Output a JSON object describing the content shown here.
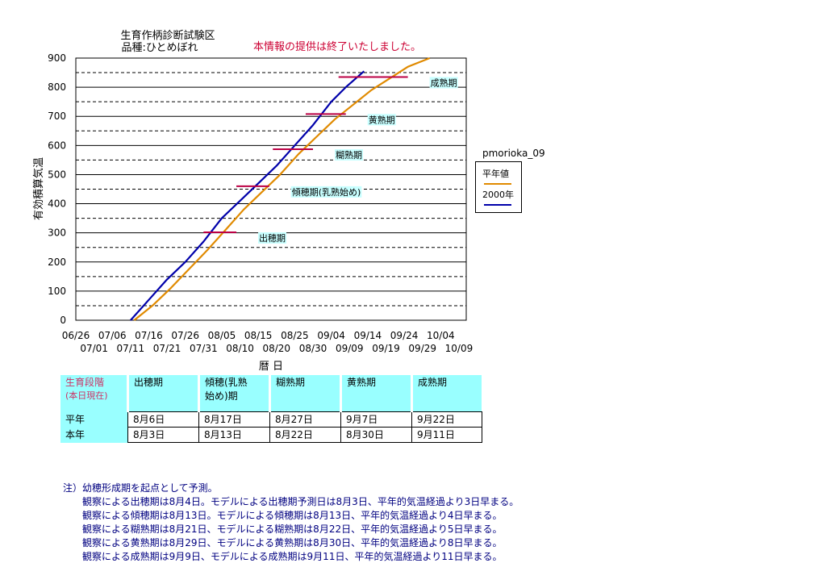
{
  "title_line1": "生育作柄診断試験区",
  "title_line2": "品種:ひとめぼれ",
  "notice": "本情報の提供は終了いたしました。",
  "site_label": "pmorioka_09",
  "colors": {
    "normal_year": "#e08a00",
    "year_2000": "#0000aa",
    "stage_marker": "#bb0044",
    "stage_label_bg": "#c8ffff"
  },
  "chart_data": {
    "type": "line",
    "ylabel": "有効積算気温",
    "xlabel": "暦 日",
    "ylim": [
      0,
      900
    ],
    "yticks": [
      "0",
      "100",
      "200",
      "300",
      "400",
      "500",
      "600",
      "700",
      "800",
      "900"
    ],
    "xtick_labels_top": [
      "06/26",
      "07/06",
      "07/16",
      "07/26",
      "08/05",
      "08/15",
      "08/25",
      "09/04",
      "09/14",
      "09/24",
      "10/04"
    ],
    "xtick_labels_bottom": [
      "07/01",
      "07/11",
      "07/21",
      "07/31",
      "08/10",
      "08/20",
      "08/30",
      "09/09",
      "09/19",
      "09/29",
      "10/09"
    ],
    "grid": "horizontal",
    "series": [
      {
        "name": "平年値",
        "color": "#e08a00",
        "points": [
          [
            "07/12",
            0
          ],
          [
            "07/17",
            50
          ],
          [
            "07/22",
            110
          ],
          [
            "07/27",
            175
          ],
          [
            "08/01",
            240
          ],
          [
            "08/06",
            310
          ],
          [
            "08/11",
            380
          ],
          [
            "08/16",
            440
          ],
          [
            "08/21",
            500
          ],
          [
            "08/26",
            570
          ],
          [
            "08/31",
            630
          ],
          [
            "09/05",
            690
          ],
          [
            "09/10",
            740
          ],
          [
            "09/15",
            790
          ],
          [
            "09/20",
            830
          ],
          [
            "09/25",
            870
          ],
          [
            "10/01",
            900
          ]
        ]
      },
      {
        "name": "2000年",
        "color": "#0000aa",
        "points": [
          [
            "07/11",
            0
          ],
          [
            "07/16",
            70
          ],
          [
            "07/21",
            140
          ],
          [
            "07/26",
            200
          ],
          [
            "07/31",
            270
          ],
          [
            "08/05",
            350
          ],
          [
            "08/10",
            410
          ],
          [
            "08/15",
            470
          ],
          [
            "08/20",
            530
          ],
          [
            "08/25",
            600
          ],
          [
            "08/30",
            670
          ],
          [
            "09/04",
            750
          ],
          [
            "09/08",
            800
          ],
          [
            "09/13",
            855
          ]
        ]
      }
    ],
    "stage_markers": [
      {
        "label": "出穂期",
        "y": 302,
        "from": "07/31",
        "to": "08/09"
      },
      {
        "label": "傾穂期(乳熟始め)",
        "y": 460,
        "from": "08/09",
        "to": "08/18"
      },
      {
        "label": "糊熟期",
        "y": 587,
        "from": "08/19",
        "to": "08/30"
      },
      {
        "label": "黄熟期",
        "y": 708,
        "from": "08/28",
        "to": "09/08"
      },
      {
        "label": "成熟期",
        "y": 835,
        "from": "09/06",
        "to": "09/25"
      }
    ]
  },
  "stages_table": {
    "header_label": [
      "生育段階",
      "(本日現在)"
    ],
    "stage_names": [
      [
        "出穂期",
        ""
      ],
      [
        "傾穂(乳熟",
        "始め)期"
      ],
      [
        "糊熟期",
        ""
      ],
      [
        "黄熟期",
        ""
      ],
      [
        "成熟期",
        ""
      ]
    ],
    "rows": [
      {
        "label": "平年",
        "values": [
          "8月6日",
          "8月17日",
          "8月27日",
          "9月7日",
          "9月22日"
        ]
      },
      {
        "label": "本年",
        "values": [
          "8月3日",
          "8月13日",
          "8月22日",
          "8月30日",
          "9月11日"
        ]
      }
    ]
  },
  "notes": [
    "注）幼穂形成期を起点として予測。",
    "　　観察による出穂期は8月4日。モデルによる出穂期予測日は8月3日、平年的気温経過より3日早まる。",
    "　　観察による傾穂期は8月13日。モデルによる傾穂期は8月13日、平年的気温経過より4日早まる。",
    "　　観察による糊熟期は8月21日、モデルによる糊熟期は8月22日、平年的気温経過より5日早まる。",
    "　　観察による黄熟期は8月29日、モデルによる黄熟期は8月30日、平年的気温経過より8日早まる。",
    "　　観察による成熟期は9月9日、モデルによる成熟期は9月11日、平年的気温経過より11日早まる。"
  ]
}
